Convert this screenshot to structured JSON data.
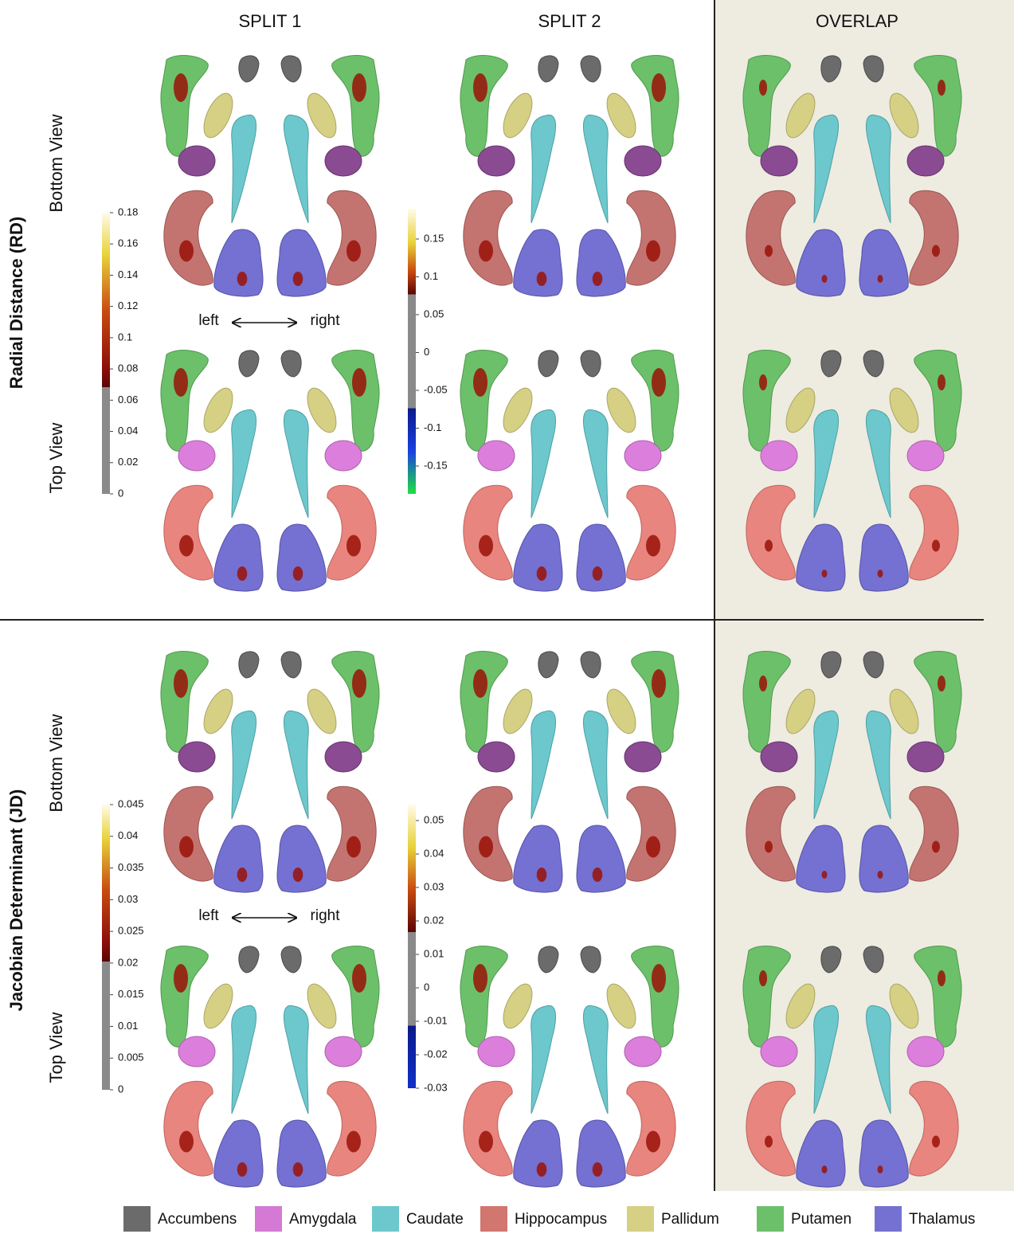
{
  "header": {
    "columns": [
      "SPLIT 1",
      "SPLIT 2",
      "OVERLAP"
    ]
  },
  "rows": [
    {
      "label": "Radial Distance (RD)",
      "views": [
        "Bottom View",
        "Top View"
      ],
      "orientation": [
        "left",
        "right"
      ],
      "colorbars": [
        [
          "0.18",
          "0.16",
          "0.14",
          "0.12",
          "0.1",
          "0.08",
          "0.06",
          "0.04",
          "0.02",
          "0"
        ],
        [
          "0.15",
          "0.1",
          "0.05",
          "0",
          "-0.05",
          "-0.1",
          "-0.15"
        ]
      ]
    },
    {
      "label": "Jacobian Determinant (JD)",
      "views": [
        "Bottom View",
        "Top View"
      ],
      "orientation": [
        "left",
        "right"
      ],
      "colorbars": [
        [
          "0.045",
          "0.04",
          "0.035",
          "0.03",
          "0.025",
          "0.02",
          "0.015",
          "0.01",
          "0.005",
          "0"
        ],
        [
          "0.05",
          "0.04",
          "0.03",
          "0.02",
          "0.01",
          "0",
          "-0.01",
          "-0.02",
          "-0.03"
        ]
      ]
    }
  ],
  "legend": [
    {
      "label": "Accumbens",
      "color": "#6b6b6b"
    },
    {
      "label": "Amygdala",
      "color": "#d47ad4"
    },
    {
      "label": "Caudate",
      "color": "#6cc8cc"
    },
    {
      "label": "Hippocampus",
      "color": "#d27670"
    },
    {
      "label": "Pallidum",
      "color": "#d6d084"
    },
    {
      "label": "Putamen",
      "color": "#6cc06a"
    },
    {
      "label": "Thalamus",
      "color": "#7571d2"
    }
  ]
}
